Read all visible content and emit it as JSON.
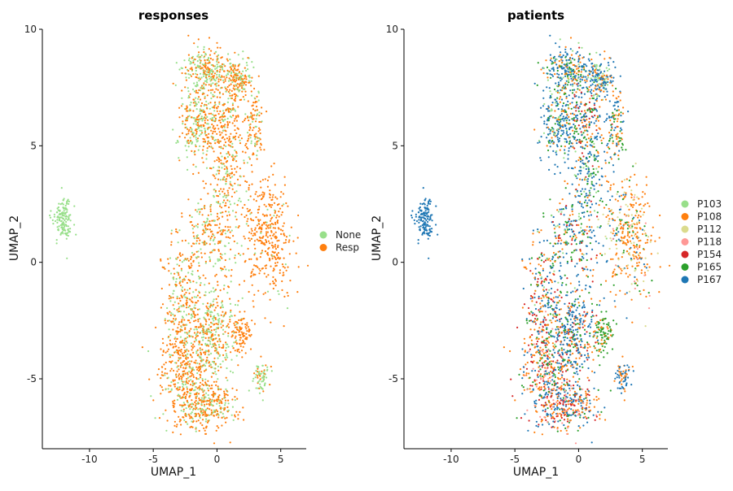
{
  "chart_data": [
    {
      "type": "scatter",
      "title": "responses",
      "xlabel": "UMAP_1",
      "ylabel": "UMAP_2",
      "xlim": [
        -13.7,
        7.0
      ],
      "ylim": [
        -8.0,
        10.0
      ],
      "xticks": [
        -10,
        -5,
        0,
        5
      ],
      "yticks": [
        -5,
        0,
        5,
        10
      ],
      "legend_position": "right",
      "series": [
        {
          "name": "None",
          "color": "#98df8a"
        },
        {
          "name": "Resp",
          "color": "#ff7f0e"
        }
      ]
    },
    {
      "type": "scatter",
      "title": "patients",
      "xlabel": "UMAP_1",
      "ylabel": "UMAP_2",
      "xlim": [
        -13.7,
        7.0
      ],
      "ylim": [
        -8.0,
        10.0
      ],
      "xticks": [
        -10,
        -5,
        0,
        5
      ],
      "yticks": [
        -5,
        0,
        5,
        10
      ],
      "legend_position": "right",
      "series": [
        {
          "name": "P103",
          "color": "#98df8a"
        },
        {
          "name": "P108",
          "color": "#ff7f0e"
        },
        {
          "name": "P112",
          "color": "#dbdb8d"
        },
        {
          "name": "P118",
          "color": "#ff9896"
        },
        {
          "name": "P154",
          "color": "#d62728"
        },
        {
          "name": "P165",
          "color": "#2ca02c"
        },
        {
          "name": "P167",
          "color": "#1f77b4"
        }
      ]
    }
  ]
}
